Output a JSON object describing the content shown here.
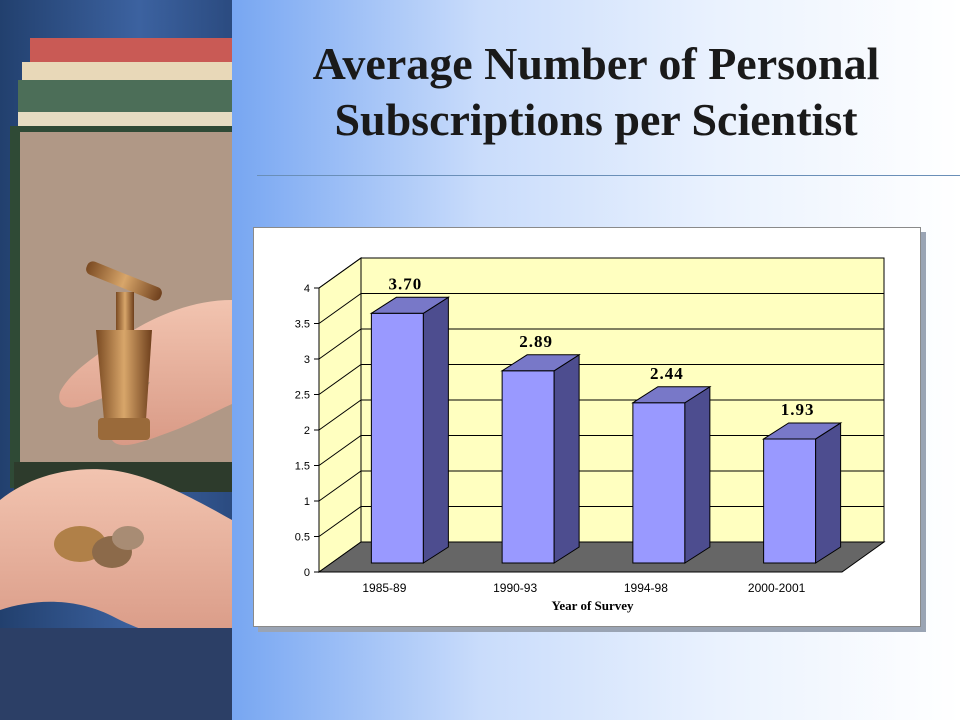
{
  "slide": {
    "title_line1": "Average Number of Personal",
    "title_line2": "Subscriptions per Scientist"
  },
  "colors": {
    "background_left": "#3f7fe6",
    "background_right": "#ffffff",
    "plot_wall": "#ffffc0",
    "plot_floor": "#666666",
    "bar_front": "#9999ff",
    "bar_side": "#4d4d8f",
    "bar_top": "#7878c8"
  },
  "photo": {
    "icon": "hands-holding-books-faucet-coins-photo"
  },
  "chart_data": {
    "type": "bar",
    "title": "",
    "xlabel": "Year of Survey",
    "ylabel": "",
    "categories": [
      "1985-89",
      "1990-93",
      "1994-98",
      "2000-2001"
    ],
    "values": [
      3.7,
      2.89,
      2.44,
      1.93
    ],
    "data_labels": [
      "3.70",
      "2.89",
      "2.44",
      "1.93"
    ],
    "ylim": [
      0,
      4
    ],
    "yticks": [
      0,
      0.5,
      1,
      1.5,
      2,
      2.5,
      3,
      3.5,
      4
    ],
    "ytick_labels": [
      "0",
      "0.5",
      "1",
      "1.5",
      "2",
      "2.5",
      "3",
      "3.5",
      "4"
    ],
    "grid": true,
    "style": "3d-column",
    "legend": "none"
  }
}
